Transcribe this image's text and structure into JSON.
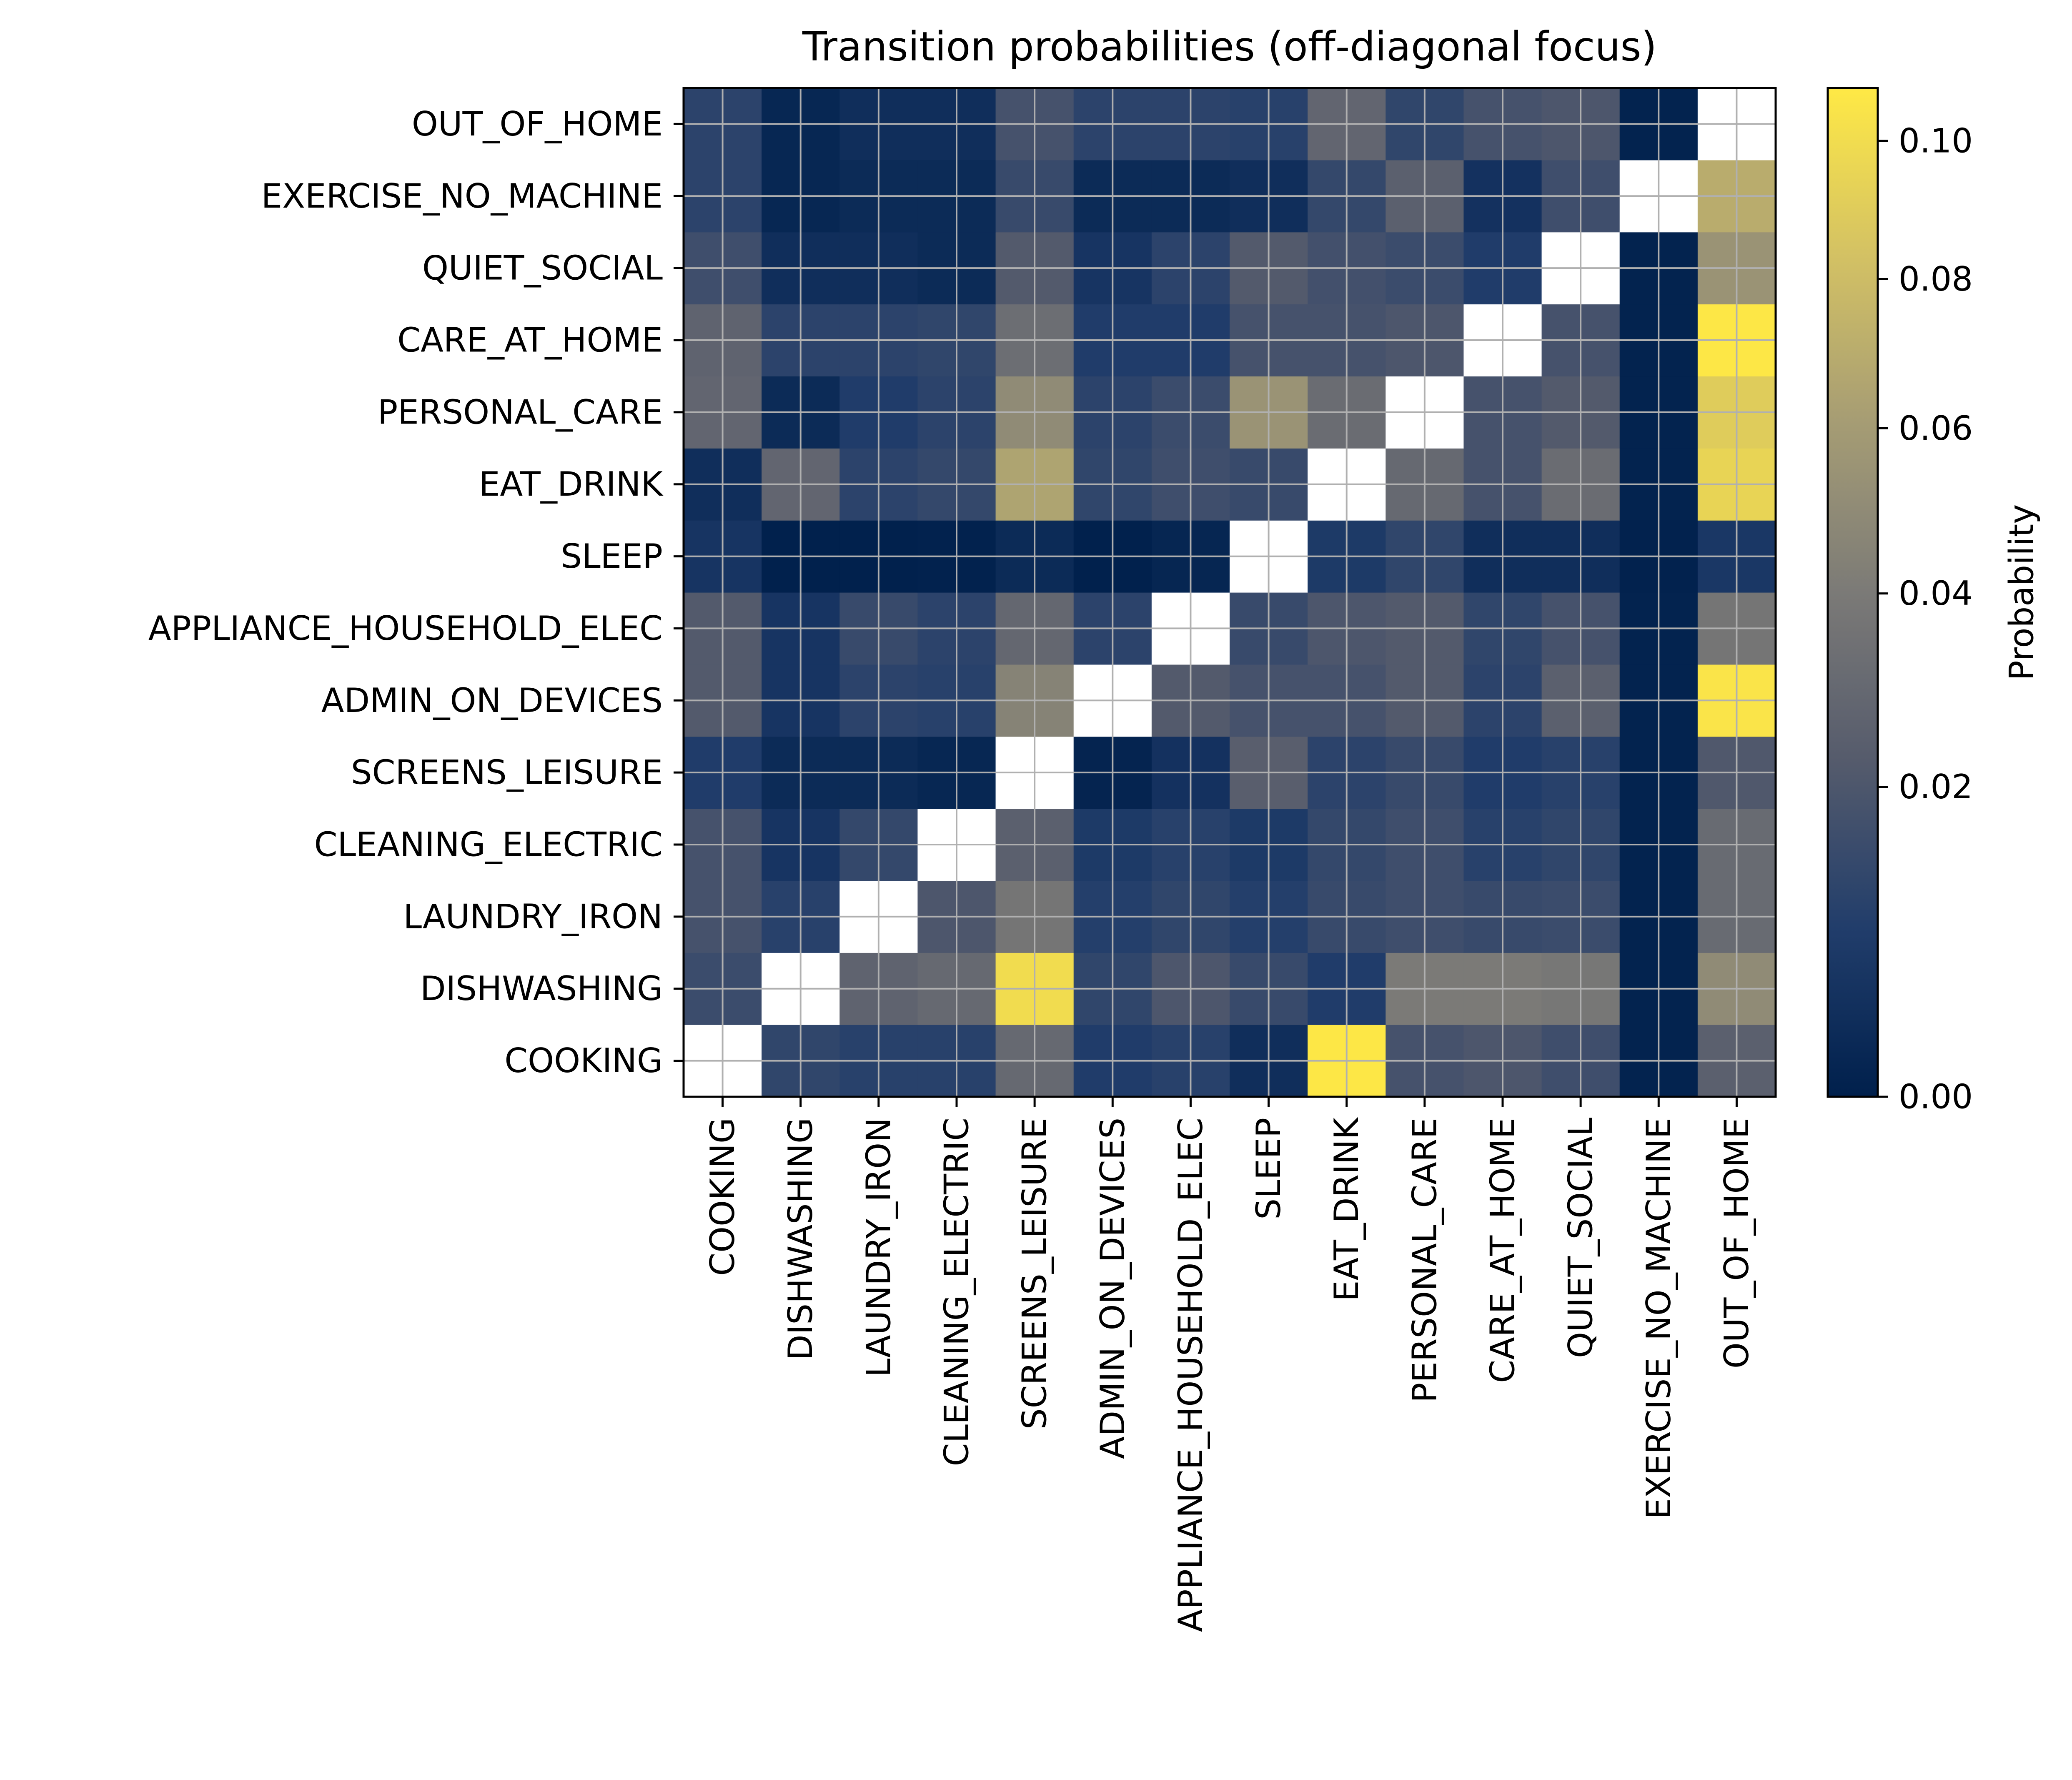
{
  "chart_data": {
    "type": "heatmap",
    "title": "Transition probabilities (off-diagonal focus)",
    "xlabel": "",
    "ylabel": "",
    "categories": [
      "COOKING",
      "DISHWASHING",
      "LAUNDRY_IRON",
      "CLEANING_ELECTRIC",
      "SCREENS_LEISURE",
      "ADMIN_ON_DEVICES",
      "APPLIANCE_HOUSEHOLD_ELEC",
      "SLEEP",
      "EAT_DRINK",
      "PERSONAL_CARE",
      "CARE_AT_HOME",
      "QUIET_SOCIAL",
      "EXERCISE_NO_MACHINE",
      "OUT_OF_HOME"
    ],
    "y_order_top_to_bottom": [
      "OUT_OF_HOME",
      "EXERCISE_NO_MACHINE",
      "QUIET_SOCIAL",
      "CARE_AT_HOME",
      "PERSONAL_CARE",
      "EAT_DRINK",
      "SLEEP",
      "APPLIANCE_HOUSEHOLD_ELEC",
      "ADMIN_ON_DEVICES",
      "SCREENS_LEISURE",
      "CLEANING_ELECTRIC",
      "LAUNDRY_IRON",
      "DISHWASHING",
      "COOKING"
    ],
    "diagonal": "masked (drawn white)",
    "values": [
      [
        null,
        0.012,
        0.01,
        0.01,
        0.03,
        0.008,
        0.01,
        0.003,
        0.107,
        0.018,
        0.02,
        0.016,
        0.0003,
        0.025
      ],
      [
        0.015,
        null,
        0.027,
        0.03,
        0.1,
        0.012,
        0.02,
        0.014,
        0.008,
        0.04,
        0.04,
        0.038,
        0.0003,
        0.05
      ],
      [
        0.018,
        0.01,
        null,
        0.02,
        0.037,
        0.009,
        0.012,
        0.009,
        0.014,
        0.016,
        0.014,
        0.015,
        0.0003,
        0.031
      ],
      [
        0.018,
        0.005,
        0.013,
        null,
        0.025,
        0.007,
        0.01,
        0.007,
        0.013,
        0.016,
        0.01,
        0.012,
        0.0003,
        0.031
      ],
      [
        0.008,
        0.002,
        0.002,
        0.001,
        null,
        0.0005,
        0.004,
        0.024,
        0.011,
        0.014,
        0.008,
        0.01,
        0.0003,
        0.021
      ],
      [
        0.022,
        0.005,
        0.011,
        0.01,
        0.045,
        null,
        0.022,
        0.018,
        0.018,
        0.022,
        0.011,
        0.025,
        0.0003,
        0.105
      ],
      [
        0.022,
        0.005,
        0.014,
        0.011,
        0.029,
        0.011,
        null,
        0.014,
        0.02,
        0.022,
        0.012,
        0.018,
        0.0003,
        0.037
      ],
      [
        0.005,
        0.0001,
        0.0001,
        0.0002,
        0.002,
        0.0001,
        0.0008,
        null,
        0.007,
        0.012,
        0.003,
        0.003,
        0.0002,
        0.006
      ],
      [
        0.003,
        0.028,
        0.011,
        0.013,
        0.065,
        0.012,
        0.016,
        0.014,
        null,
        0.03,
        0.018,
        0.032,
        0.0003,
        0.095
      ],
      [
        0.028,
        0.002,
        0.008,
        0.011,
        0.05,
        0.011,
        0.015,
        0.055,
        0.032,
        null,
        0.018,
        0.022,
        0.0003,
        0.09
      ],
      [
        0.027,
        0.011,
        0.011,
        0.012,
        0.033,
        0.008,
        0.008,
        0.018,
        0.018,
        0.02,
        null,
        0.018,
        0.0003,
        0.107
      ],
      [
        0.016,
        0.003,
        0.003,
        0.002,
        0.022,
        0.005,
        0.011,
        0.022,
        0.017,
        0.015,
        0.008,
        null,
        0.0003,
        0.055
      ],
      [
        0.011,
        0.001,
        0.002,
        0.002,
        0.014,
        0.002,
        0.002,
        0.003,
        0.013,
        0.025,
        0.004,
        0.016,
        null,
        0.07
      ],
      [
        0.011,
        0.001,
        0.003,
        0.003,
        0.018,
        0.011,
        0.011,
        0.01,
        0.028,
        0.012,
        0.018,
        0.02,
        0.0003,
        null
      ]
    ],
    "colormap": "cividis",
    "colorbar": {
      "label": "Probability",
      "range": [
        0,
        0.108
      ],
      "scale": "power (gamma ~0.7)",
      "ticks": [
        {
          "value": 0,
          "label": "0.00"
        },
        {
          "value": 0.02,
          "label": "0.02"
        },
        {
          "value": 0.04,
          "label": "0.04"
        },
        {
          "value": 0.06,
          "label": "0.06"
        },
        {
          "value": 0.08,
          "label": "0.08"
        },
        {
          "value": 0.1,
          "label": "0.10"
        }
      ]
    },
    "grid": true,
    "colors": {
      "diagonal": "#ffffff",
      "grid": "#b0b0b0",
      "cividis_stops": [
        "#00204c",
        "#213d6b",
        "#555b6c",
        "#7b7a77",
        "#a59c74",
        "#d3c164",
        "#ffe945"
      ]
    }
  }
}
